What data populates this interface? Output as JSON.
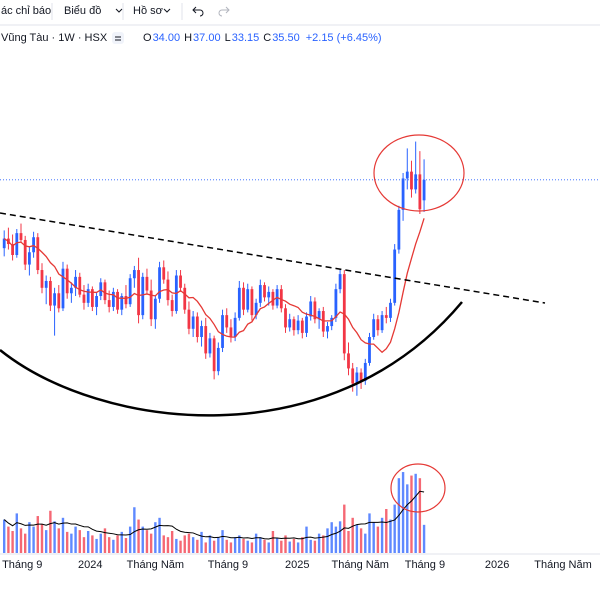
{
  "header": {
    "toolbar": [
      "ác chỉ báo",
      "Biểu đồ",
      "Hồ sơ"
    ],
    "symbol": "Vũng Tàu · 1W · HSX",
    "ohlc": [
      {
        "key": "O",
        "value": "34.00"
      },
      {
        "key": "H",
        "value": "37.00"
      },
      {
        "key": "L",
        "value": "33.15"
      },
      {
        "key": "C",
        "value": "35.50"
      }
    ],
    "change": "+2.15 (+6.45%)"
  },
  "chart_data": {
    "type": "candlestick",
    "candles": [
      [
        30.5,
        31.8,
        29.9,
        31.2
      ],
      [
        31.2,
        32.0,
        30.4,
        30.8
      ],
      [
        30.8,
        31.5,
        29.6,
        30.0
      ],
      [
        30.0,
        31.9,
        29.8,
        31.6
      ],
      [
        31.6,
        32.3,
        30.9,
        31.1
      ],
      [
        31.1,
        31.4,
        28.9,
        29.3
      ],
      [
        29.3,
        30.6,
        28.5,
        30.2
      ],
      [
        30.2,
        31.7,
        29.8,
        31.3
      ],
      [
        31.3,
        31.6,
        28.6,
        28.9
      ],
      [
        28.9,
        29.4,
        27.2,
        27.6
      ],
      [
        27.6,
        28.5,
        26.4,
        28.1
      ],
      [
        28.1,
        28.4,
        25.9,
        26.3
      ],
      [
        26.3,
        27.6,
        24.1,
        27.2
      ],
      [
        27.2,
        27.8,
        25.8,
        26.1
      ],
      [
        26.1,
        29.5,
        25.9,
        29.0
      ],
      [
        29.0,
        29.3,
        26.8,
        27.2
      ],
      [
        27.2,
        28.0,
        26.5,
        27.6
      ],
      [
        27.6,
        28.9,
        27.0,
        28.4
      ],
      [
        28.4,
        28.7,
        26.9,
        27.1
      ],
      [
        27.1,
        27.8,
        26.0,
        26.5
      ],
      [
        26.5,
        27.9,
        26.2,
        27.5
      ],
      [
        27.5,
        27.7,
        25.9,
        26.2
      ],
      [
        26.2,
        27.3,
        25.6,
        27.0
      ],
      [
        27.0,
        28.3,
        26.7,
        28.0
      ],
      [
        28.0,
        28.2,
        26.4,
        26.7
      ],
      [
        26.7,
        27.4,
        25.8,
        26.2
      ],
      [
        26.2,
        27.6,
        25.9,
        27.3
      ],
      [
        27.3,
        27.5,
        25.7,
        26.0
      ],
      [
        26.0,
        27.2,
        25.6,
        27.0
      ],
      [
        27.0,
        27.8,
        26.1,
        26.4
      ],
      [
        26.4,
        28.6,
        26.2,
        28.3
      ],
      [
        28.3,
        29.2,
        27.6,
        28.9
      ],
      [
        28.9,
        29.8,
        25.0,
        25.6
      ],
      [
        25.6,
        28.7,
        25.3,
        28.4
      ],
      [
        28.4,
        29.0,
        27.1,
        27.4
      ],
      [
        27.4,
        28.2,
        24.8,
        25.3
      ],
      [
        25.3,
        27.0,
        24.6,
        26.8
      ],
      [
        26.8,
        29.5,
        26.5,
        29.1
      ],
      [
        29.1,
        29.6,
        27.9,
        28.2
      ],
      [
        28.2,
        28.8,
        26.3,
        26.7
      ],
      [
        26.7,
        27.1,
        25.5,
        25.9
      ],
      [
        25.9,
        28.9,
        25.7,
        28.5
      ],
      [
        28.5,
        28.9,
        27.3,
        27.6
      ],
      [
        27.6,
        27.9,
        25.7,
        26.0
      ],
      [
        26.0,
        26.6,
        24.2,
        24.6
      ],
      [
        24.6,
        25.9,
        24.0,
        25.5
      ],
      [
        25.5,
        25.8,
        23.6,
        24.0
      ],
      [
        24.0,
        25.2,
        23.3,
        24.8
      ],
      [
        24.8,
        25.4,
        22.4,
        22.8
      ],
      [
        22.8,
        24.3,
        22.5,
        23.9
      ],
      [
        23.9,
        24.1,
        20.9,
        21.5
      ],
      [
        21.5,
        23.6,
        21.2,
        23.2
      ],
      [
        23.2,
        26.0,
        22.9,
        25.6
      ],
      [
        25.6,
        26.1,
        24.3,
        24.7
      ],
      [
        24.7,
        25.3,
        23.6,
        24.0
      ],
      [
        24.0,
        25.8,
        23.7,
        25.4
      ],
      [
        25.4,
        28.1,
        25.2,
        27.6
      ],
      [
        27.6,
        28.0,
        25.6,
        26.0
      ],
      [
        26.0,
        27.9,
        25.8,
        27.5
      ],
      [
        27.5,
        27.7,
        25.2,
        25.6
      ],
      [
        25.6,
        26.8,
        25.3,
        26.5
      ],
      [
        26.5,
        28.2,
        26.2,
        27.8
      ],
      [
        27.8,
        28.0,
        26.6,
        26.9
      ],
      [
        26.9,
        27.7,
        26.3,
        27.3
      ],
      [
        27.3,
        27.5,
        26.0,
        26.3
      ],
      [
        26.3,
        27.8,
        26.1,
        27.5
      ],
      [
        27.5,
        27.8,
        25.8,
        26.1
      ],
      [
        26.1,
        26.4,
        24.3,
        24.7
      ],
      [
        24.7,
        25.7,
        24.4,
        25.3
      ],
      [
        25.3,
        25.5,
        24.1,
        24.5
      ],
      [
        24.5,
        25.6,
        24.2,
        25.2
      ],
      [
        25.2,
        25.4,
        23.9,
        24.3
      ],
      [
        24.3,
        25.8,
        24.0,
        25.5
      ],
      [
        25.5,
        27.0,
        25.2,
        26.6
      ],
      [
        26.6,
        26.9,
        25.0,
        25.3
      ],
      [
        25.3,
        26.1,
        24.6,
        25.9
      ],
      [
        25.9,
        26.2,
        24.0,
        24.4
      ],
      [
        24.4,
        25.1,
        23.9,
        24.8
      ],
      [
        24.8,
        25.6,
        24.5,
        25.4
      ],
      [
        25.4,
        27.9,
        25.1,
        27.5
      ],
      [
        27.5,
        29.0,
        27.2,
        28.6
      ],
      [
        28.6,
        28.9,
        22.3,
        22.8
      ],
      [
        22.8,
        23.6,
        21.2,
        21.7
      ],
      [
        21.7,
        22.1,
        20.0,
        20.6
      ],
      [
        20.6,
        21.8,
        19.7,
        21.4
      ],
      [
        21.4,
        21.7,
        20.2,
        20.8
      ],
      [
        20.8,
        22.4,
        20.5,
        22.1
      ],
      [
        22.1,
        24.3,
        21.9,
        24.0
      ],
      [
        24.0,
        25.7,
        23.8,
        25.3
      ],
      [
        25.3,
        25.6,
        24.1,
        24.5
      ],
      [
        24.5,
        25.9,
        24.3,
        25.6
      ],
      [
        25.6,
        26.2,
        25.0,
        25.4
      ],
      [
        25.4,
        26.8,
        25.1,
        26.5
      ],
      [
        26.5,
        30.8,
        26.3,
        30.4
      ],
      [
        30.4,
        33.6,
        30.1,
        33.3
      ],
      [
        33.3,
        36.0,
        32.5,
        35.6
      ],
      [
        35.6,
        37.8,
        34.8,
        36.1
      ],
      [
        36.1,
        36.9,
        34.2,
        34.8
      ],
      [
        34.8,
        38.3,
        34.5,
        35.9
      ],
      [
        35.9,
        37.6,
        33.0,
        33.35
      ],
      [
        34.0,
        37.0,
        33.15,
        35.5
      ]
    ],
    "volume": [
      38,
      30,
      25,
      45,
      28,
      22,
      35,
      30,
      42,
      33,
      26,
      48,
      36,
      28,
      40,
      24,
      22,
      30,
      26,
      18,
      25,
      20,
      16,
      22,
      28,
      18,
      15,
      20,
      24,
      17,
      30,
      52,
      38,
      30,
      26,
      22,
      35,
      40,
      20,
      18,
      25,
      16,
      14,
      20,
      22,
      18,
      15,
      24,
      12,
      20,
      14,
      18,
      26,
      15,
      12,
      18,
      20,
      16,
      14,
      12,
      22,
      18,
      15,
      12,
      25,
      17,
      14,
      20,
      13,
      16,
      12,
      18,
      30,
      15,
      14,
      22,
      20,
      28,
      35,
      30,
      36,
      55,
      25,
      40,
      32,
      28,
      22,
      45,
      35,
      30,
      40,
      50,
      38,
      55,
      85,
      92,
      78,
      88,
      90,
      85,
      32
    ],
    "up_color": "#2962ff",
    "down_color": "#f23645",
    "xlim": [
      -1,
      141.9
    ],
    "ylim": [
      15,
      45
    ],
    "vlim": [
      0,
      100
    ],
    "xticks": [
      {
        "value": 4.3,
        "label": "Tháng 9"
      },
      {
        "value": 20.5,
        "label": "2024"
      },
      {
        "value": 36.0,
        "label": "Tháng Năm"
      },
      {
        "value": 53.3,
        "label": "Tháng 9"
      },
      {
        "value": 69.8,
        "label": "2025"
      },
      {
        "value": 84.8,
        "label": "Tháng Năm"
      },
      {
        "value": 100.2,
        "label": "Tháng 9"
      },
      {
        "value": 117.4,
        "label": "2026"
      },
      {
        "value": 133.1,
        "label": "Tháng Năm"
      }
    ]
  }
}
